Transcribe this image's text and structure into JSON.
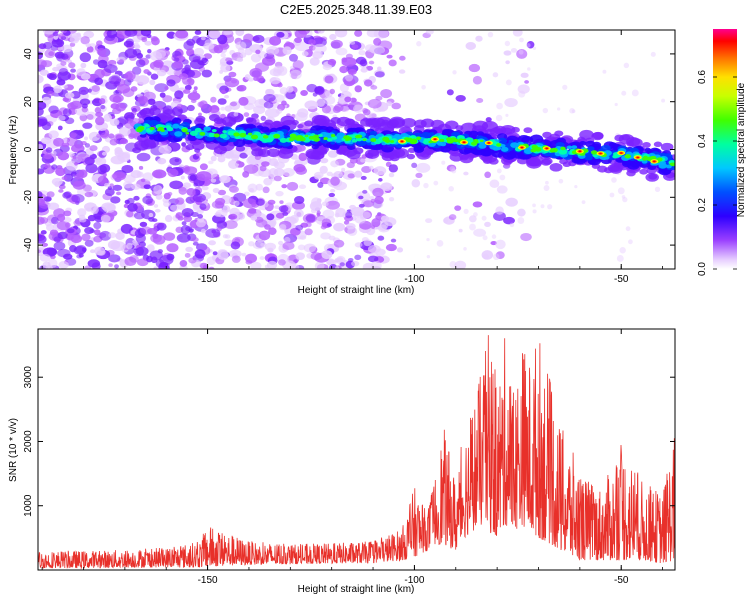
{
  "title": "C2E5.2025.348.11.39.E03",
  "colors": {
    "background": "#ffffff",
    "snr_line": "#e8302a",
    "spectrogram_cmap": [
      "#ffffff",
      "#e6ccff",
      "#b45cff",
      "#7a22ff",
      "#2d00ff",
      "#0040ff",
      "#00b0ff",
      "#00ffb0",
      "#40ff00",
      "#ffff00",
      "#ff8000",
      "#ff0000",
      "#ff00a0"
    ]
  },
  "chart_data": [
    {
      "type": "heatmap",
      "panel": "spectrogram",
      "xlabel": "Height of straight line (km)",
      "ylabel": "Frequency (Hz)",
      "xlim": [
        -191,
        -37
      ],
      "ylim": [
        -50,
        50
      ],
      "xticks": [
        "-150",
        "-100",
        "-50"
      ],
      "xtick_values": [
        -150,
        -100,
        -50
      ],
      "yticks": [
        "-40",
        "-20",
        "0",
        "20",
        "40"
      ],
      "ytick_values": [
        -40,
        -20,
        0,
        20,
        40
      ],
      "grid": false,
      "ridge": {
        "description": "dominant Doppler ridge",
        "x": [
          -165,
          -150,
          -135,
          -120,
          -105,
          -90,
          -75,
          -60,
          -50,
          -37
        ],
        "frequency_hz": [
          9,
          7,
          5,
          5,
          4,
          4,
          1,
          -1,
          -2,
          -6
        ]
      },
      "colorbar": {
        "label": "Normalized spectral amplitude",
        "range": [
          0.0,
          0.75
        ],
        "ticks": [
          "0.0",
          "0.2",
          "0.4",
          "0.6"
        ],
        "tick_values": [
          0.0,
          0.2,
          0.4,
          0.6
        ]
      }
    },
    {
      "type": "line",
      "panel": "snr",
      "xlabel": "Height of straight line (km)",
      "ylabel": "SNR (10 * v/v)",
      "xlim": [
        -191,
        -37
      ],
      "ylim": [
        0,
        3750
      ],
      "xticks": [
        "-150",
        "-100",
        "-50"
      ],
      "xtick_values": [
        -150,
        -100,
        -50
      ],
      "yticks": [
        "1000",
        "2000",
        "3000"
      ],
      "ytick_values": [
        1000,
        2000,
        3000
      ],
      "grid": false,
      "series": [
        {
          "name": "SNR",
          "envelope_x": [
            -191,
            -180,
            -170,
            -160,
            -152,
            -150,
            -140,
            -130,
            -120,
            -110,
            -103,
            -100,
            -97,
            -95,
            -93,
            -90,
            -88,
            -86,
            -84,
            -82,
            -80,
            -78,
            -76,
            -74,
            -72,
            -70,
            -67,
            -65,
            -62,
            -60,
            -55,
            -52,
            -50,
            -45,
            -40,
            -37
          ],
          "envelope_max": [
            300,
            300,
            320,
            350,
            450,
            700,
            450,
            400,
            420,
            450,
            650,
            1300,
            900,
            1500,
            2250,
            1400,
            2200,
            2600,
            3050,
            3750,
            2900,
            3700,
            2800,
            3600,
            3300,
            3750,
            2900,
            2300,
            1900,
            1500,
            1300,
            1600,
            2000,
            1400,
            1200,
            2200
          ],
          "envelope_min": [
            30,
            30,
            40,
            40,
            40,
            50,
            80,
            90,
            100,
            110,
            150,
            200,
            300,
            400,
            400,
            300,
            500,
            600,
            700,
            600,
            500,
            700,
            600,
            700,
            600,
            500,
            400,
            300,
            200,
            150,
            150,
            150,
            150,
            150,
            100,
            150
          ]
        }
      ]
    }
  ]
}
